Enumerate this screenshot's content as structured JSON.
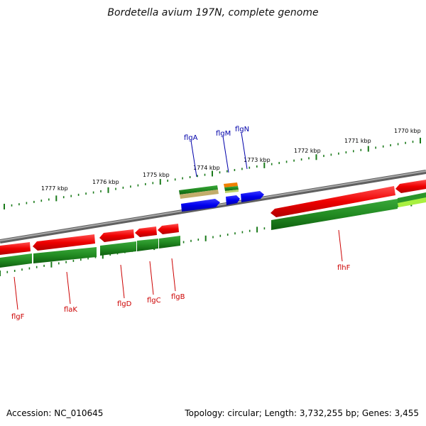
{
  "title": "Bordetella avium 197N, complete genome",
  "footer": {
    "accession": "Accession: NC_010645",
    "summary": "Topology: circular; Length: 3,732,255 bp; Genes: 3,455"
  },
  "scale_labels": [
    "1777 kbp",
    "1776 kbp",
    "1775 kbp",
    "1774 kbp",
    "1773 kbp",
    "1772 kbp",
    "1771 kbp",
    "1770 kbp"
  ],
  "genes_top": [
    "flgA",
    "flgM",
    "flgN"
  ],
  "genes_bottom": [
    "flgF",
    "flaK",
    "flgD",
    "flgC",
    "flgB",
    "flhF"
  ],
  "colors": {
    "forward_gene": "#0000ee",
    "reverse_gene": "#ee0000",
    "cds": "#228b22",
    "backbone": "#808080",
    "label_top": "#0000aa",
    "label_bottom": "#cc0000",
    "tick": "#1a7a1a"
  }
}
